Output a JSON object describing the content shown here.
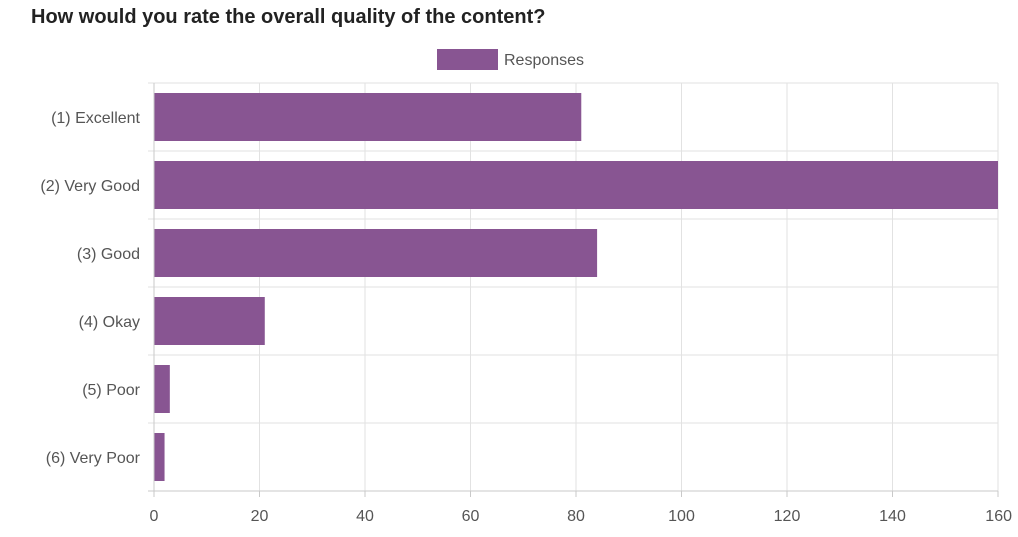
{
  "chart_data": {
    "type": "bar",
    "orientation": "horizontal",
    "title": "How would you rate the overall quality of the content?",
    "categories": [
      "(1) Excellent",
      "(2) Very Good",
      "(3) Good",
      "(4) Okay",
      "(5) Poor",
      "(6) Very Poor"
    ],
    "series": [
      {
        "name": "Responses",
        "values": [
          81,
          160,
          84,
          21,
          3,
          2
        ]
      }
    ],
    "xlim": [
      0,
      160
    ],
    "x_ticks": [
      0,
      20,
      40,
      60,
      80,
      100,
      120,
      140,
      160
    ],
    "grid": true,
    "legend_position": "top-center",
    "colors": {
      "bar": "#885592",
      "grid": "#e2e2e2",
      "axis": "#c9c9c9",
      "text": "#555555",
      "title": "#222222"
    }
  }
}
